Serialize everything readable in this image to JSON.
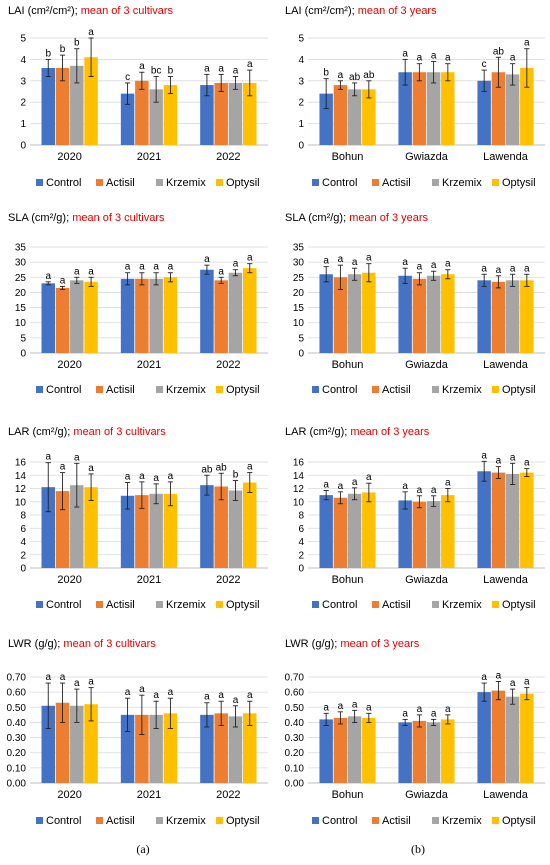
{
  "legend": [
    "Control",
    "Actisil",
    "Krzemix",
    "Optysil"
  ],
  "colors": [
    "#4472c4",
    "#ed7d31",
    "#a5a5a5",
    "#ffc000"
  ],
  "panel_labels": {
    "left": "(a)",
    "right": "(b)"
  },
  "chart_data": [
    {
      "type": "bar",
      "title_black": "LAI (cm²/cm²);",
      "title_red": "mean of 3 cultivars",
      "categories": [
        "2020",
        "2021",
        "2022"
      ],
      "ylim": [
        0,
        5
      ],
      "yticks": [
        "0",
        "1",
        "2",
        "3",
        "4",
        "5"
      ],
      "series": [
        {
          "name": "Control",
          "values": [
            3.6,
            2.4,
            2.8
          ],
          "errors": [
            0.4,
            0.5,
            0.5
          ],
          "letters": [
            "b",
            "c",
            "a"
          ]
        },
        {
          "name": "Actisil",
          "values": [
            3.6,
            3.0,
            2.9
          ],
          "errors": [
            0.6,
            0.4,
            0.4
          ],
          "letters": [
            "b",
            "a",
            "a"
          ]
        },
        {
          "name": "Krzemix",
          "values": [
            3.7,
            2.6,
            2.9
          ],
          "errors": [
            0.8,
            0.6,
            0.3
          ],
          "letters": [
            "b",
            "bc",
            "a"
          ]
        },
        {
          "name": "Optysil",
          "values": [
            4.1,
            2.8,
            2.9
          ],
          "errors": [
            0.9,
            0.4,
            0.6
          ],
          "letters": [
            "a",
            "b",
            "a"
          ]
        }
      ]
    },
    {
      "type": "bar",
      "title_black": "LAI (cm²/cm²);",
      "title_red": "mean of 3 years",
      "categories": [
        "Bohun",
        "Gwiazda",
        "Lawenda"
      ],
      "ylim": [
        0,
        5
      ],
      "yticks": [
        "0",
        "1",
        "2",
        "3",
        "4",
        "5"
      ],
      "series": [
        {
          "name": "Control",
          "values": [
            2.4,
            3.4,
            3.0
          ],
          "errors": [
            0.7,
            0.6,
            0.5
          ],
          "letters": [
            "b",
            "a",
            "c"
          ]
        },
        {
          "name": "Actisil",
          "values": [
            2.8,
            3.4,
            3.4
          ],
          "errors": [
            0.2,
            0.4,
            0.7
          ],
          "letters": [
            "a",
            "a",
            "ab"
          ]
        },
        {
          "name": "Krzemix",
          "values": [
            2.6,
            3.4,
            3.3
          ],
          "errors": [
            0.3,
            0.5,
            0.5
          ],
          "letters": [
            "ab",
            "a",
            "a"
          ]
        },
        {
          "name": "Optysil",
          "values": [
            2.6,
            3.4,
            3.6
          ],
          "errors": [
            0.4,
            0.4,
            0.9
          ],
          "letters": [
            "ab",
            "a",
            "a"
          ]
        }
      ]
    },
    {
      "type": "bar",
      "title_black": "SLA (cm²/g);",
      "title_red": "mean of 3 cultivars",
      "categories": [
        "2020",
        "2021",
        "2022"
      ],
      "ylim": [
        0,
        35
      ],
      "yticks": [
        "0",
        "5",
        "10",
        "15",
        "20",
        "25",
        "30",
        "35"
      ],
      "series": [
        {
          "name": "Control",
          "values": [
            23.0,
            24.5,
            27.5
          ],
          "errors": [
            0.5,
            2.0,
            1.5
          ],
          "letters": [
            "a",
            "a",
            "a"
          ]
        },
        {
          "name": "Actisil",
          "values": [
            21.5,
            24.5,
            24.0
          ],
          "errors": [
            0.5,
            2.0,
            1.0
          ],
          "letters": [
            "a",
            "a",
            "a"
          ]
        },
        {
          "name": "Krzemix",
          "values": [
            24.0,
            24.5,
            26.5
          ],
          "errors": [
            1.0,
            2.0,
            1.0
          ],
          "letters": [
            "a",
            "a",
            "a"
          ]
        },
        {
          "name": "Optysil",
          "values": [
            23.5,
            25.0,
            28.0
          ],
          "errors": [
            1.5,
            1.5,
            1.5
          ],
          "letters": [
            "a",
            "a",
            "a"
          ]
        }
      ]
    },
    {
      "type": "bar",
      "title_black": "SLA (cm²/g);",
      "title_red": "mean of 3 years",
      "categories": [
        "Bohun",
        "Gwiazda",
        "Lawenda"
      ],
      "ylim": [
        0,
        35
      ],
      "yticks": [
        "0",
        "5",
        "10",
        "15",
        "20",
        "25",
        "30",
        "35"
      ],
      "series": [
        {
          "name": "Control",
          "values": [
            26.0,
            25.5,
            24.0
          ],
          "errors": [
            2.5,
            2.5,
            2.0
          ],
          "letters": [
            "a",
            "a",
            "a"
          ]
        },
        {
          "name": "Actisil",
          "values": [
            25.0,
            24.5,
            23.5
          ],
          "errors": [
            4.0,
            2.0,
            2.0
          ],
          "letters": [
            "a",
            "a",
            "a"
          ]
        },
        {
          "name": "Krzemix",
          "values": [
            26.0,
            25.5,
            24.0
          ],
          "errors": [
            2.0,
            1.5,
            2.0
          ],
          "letters": [
            "a",
            "a",
            "a"
          ]
        },
        {
          "name": "Optysil",
          "values": [
            26.5,
            26.0,
            24.0
          ],
          "errors": [
            3.0,
            1.5,
            2.0
          ],
          "letters": [
            "a",
            "a",
            "a"
          ]
        }
      ]
    },
    {
      "type": "bar",
      "title_black": "LAR (cm²/g);",
      "title_red": "mean of 3 cultivars",
      "categories": [
        "2020",
        "2021",
        "2022"
      ],
      "ylim": [
        0,
        16
      ],
      "yticks": [
        "0",
        "2",
        "4",
        "6",
        "8",
        "10",
        "12",
        "14",
        "16"
      ],
      "series": [
        {
          "name": "Control",
          "values": [
            12.2,
            10.9,
            12.5
          ],
          "errors": [
            3.7,
            2.0,
            1.5
          ],
          "letters": [
            "a",
            "a",
            "ab"
          ]
        },
        {
          "name": "Actisil",
          "values": [
            11.6,
            11.0,
            12.3
          ],
          "errors": [
            2.8,
            2.0,
            2.0
          ],
          "letters": [
            "a",
            "a",
            "ab"
          ]
        },
        {
          "name": "Krzemix",
          "values": [
            12.5,
            11.2,
            11.7
          ],
          "errors": [
            3.3,
            1.5,
            1.5
          ],
          "letters": [
            "a",
            "a",
            "b"
          ]
        },
        {
          "name": "Optysil",
          "values": [
            12.2,
            11.2,
            12.9
          ],
          "errors": [
            2.0,
            1.8,
            1.5
          ],
          "letters": [
            "a",
            "a",
            "a"
          ]
        }
      ]
    },
    {
      "type": "bar",
      "title_black": "LAR (cm²/g);",
      "title_red": "mean of 3 years",
      "categories": [
        "Bohun",
        "Gwiazda",
        "Lawenda"
      ],
      "ylim": [
        0,
        16
      ],
      "yticks": [
        "0",
        "2",
        "4",
        "6",
        "8",
        "10",
        "12",
        "14",
        "16"
      ],
      "series": [
        {
          "name": "Control",
          "values": [
            11.0,
            10.2,
            14.6
          ],
          "errors": [
            0.7,
            1.3,
            1.5
          ],
          "letters": [
            "a",
            "a",
            "a"
          ]
        },
        {
          "name": "Actisil",
          "values": [
            10.6,
            10.0,
            14.4
          ],
          "errors": [
            0.9,
            0.9,
            0.9
          ],
          "letters": [
            "a",
            "a",
            "a"
          ]
        },
        {
          "name": "Krzemix",
          "values": [
            11.2,
            10.1,
            14.2
          ],
          "errors": [
            0.9,
            0.8,
            1.6
          ],
          "letters": [
            "a",
            "a",
            "a"
          ]
        },
        {
          "name": "Optysil",
          "values": [
            11.4,
            11.0,
            14.4
          ],
          "errors": [
            1.4,
            1.0,
            0.6
          ],
          "letters": [
            "a",
            "a",
            "a"
          ]
        }
      ]
    },
    {
      "type": "bar",
      "title_black": "LWR (g/g);",
      "title_red": "mean of 3 cultivars",
      "categories": [
        "2020",
        "2021",
        "2022"
      ],
      "ylim": [
        0,
        0.7
      ],
      "yticks": [
        "0.00",
        "0.10",
        "0.20",
        "0.30",
        "0.40",
        "0.50",
        "0.60",
        "0.70"
      ],
      "series": [
        {
          "name": "Control",
          "values": [
            0.51,
            0.45,
            0.45
          ],
          "errors": [
            0.15,
            0.11,
            0.08
          ],
          "letters": [
            "a",
            "a",
            "a"
          ]
        },
        {
          "name": "Actisil",
          "values": [
            0.53,
            0.45,
            0.46
          ],
          "errors": [
            0.13,
            0.13,
            0.08
          ],
          "letters": [
            "a",
            "a",
            "a"
          ]
        },
        {
          "name": "Krzemix",
          "values": [
            0.51,
            0.45,
            0.44
          ],
          "errors": [
            0.11,
            0.09,
            0.07
          ],
          "letters": [
            "a",
            "a",
            "a"
          ]
        },
        {
          "name": "Optysil",
          "values": [
            0.52,
            0.46,
            0.46
          ],
          "errors": [
            0.11,
            0.1,
            0.08
          ],
          "letters": [
            "a",
            "a",
            "a"
          ]
        }
      ]
    },
    {
      "type": "bar",
      "title_black": "LWR (g/g);",
      "title_red": "mean of 3 years",
      "categories": [
        "Bohun",
        "Gwiazda",
        "Lawenda"
      ],
      "ylim": [
        0,
        0.7
      ],
      "yticks": [
        "0.00",
        "0.10",
        "0.20",
        "0.30",
        "0.40",
        "0.50",
        "0.60",
        "0.70"
      ],
      "series": [
        {
          "name": "Control",
          "values": [
            0.42,
            0.4,
            0.6
          ],
          "errors": [
            0.04,
            0.02,
            0.06
          ],
          "letters": [
            "a",
            "a",
            "a"
          ]
        },
        {
          "name": "Actisil",
          "values": [
            0.43,
            0.41,
            0.61
          ],
          "errors": [
            0.04,
            0.04,
            0.06
          ],
          "letters": [
            "a",
            "a",
            "a"
          ]
        },
        {
          "name": "Krzemix",
          "values": [
            0.44,
            0.4,
            0.57
          ],
          "errors": [
            0.04,
            0.02,
            0.05
          ],
          "letters": [
            "a",
            "a",
            "a"
          ]
        },
        {
          "name": "Optysil",
          "values": [
            0.43,
            0.42,
            0.59
          ],
          "errors": [
            0.03,
            0.03,
            0.04
          ],
          "letters": [
            "a",
            "a",
            "a"
          ]
        }
      ]
    }
  ]
}
